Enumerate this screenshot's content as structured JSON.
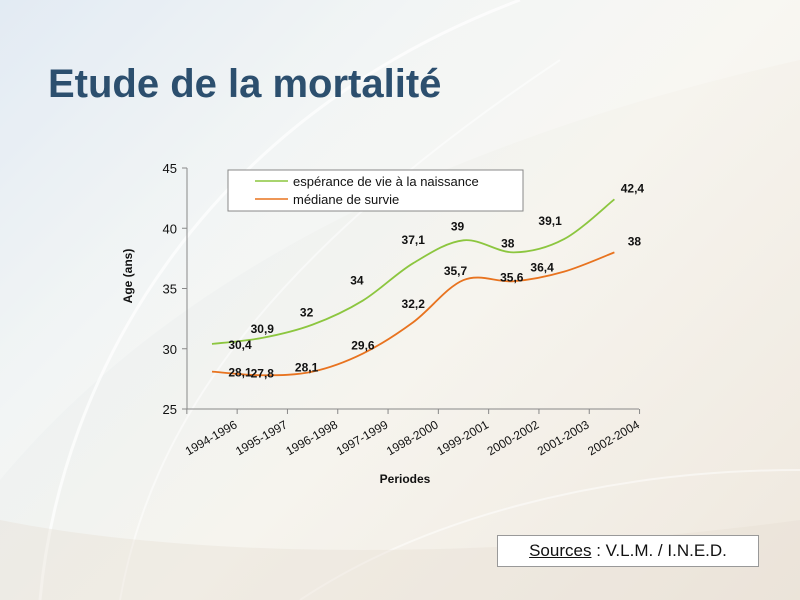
{
  "slide": {
    "title": "Etude de la mortalité",
    "sources_label": "Sources",
    "sources_text": " : V.L.M. / I.N.E.D."
  },
  "colors": {
    "title": "#2c4f6e",
    "series_esperance": "#8cc63f",
    "series_mediane": "#e8731f"
  },
  "chart_data": {
    "type": "line",
    "categories": [
      "1994-1996",
      "1995-1997",
      "1996-1998",
      "1997-1999",
      "1998-2000",
      "1999-2001",
      "2000-2002",
      "2001-2003",
      "2002-2004"
    ],
    "series": [
      {
        "name": "espérance de vie à la naissance",
        "values": [
          30.4,
          30.9,
          32,
          34,
          37.1,
          39,
          38,
          39.1,
          42.4
        ],
        "labels": [
          "30,4",
          "30,9",
          "32",
          "34",
          "37,1",
          "39",
          "38",
          "39,1",
          "42,4"
        ]
      },
      {
        "name": "médiane de survie",
        "values": [
          28.1,
          27.8,
          28.1,
          29.6,
          32.2,
          35.7,
          35.6,
          36.4,
          38
        ],
        "labels": [
          "28,1",
          "27,8",
          "28,1",
          "29,6",
          "32,2",
          "35,7",
          "35,6",
          "36,4",
          "38"
        ]
      }
    ],
    "xlabel": "Periodes",
    "ylabel": "Age (ans)",
    "ylim": [
      25,
      45
    ],
    "yticks": [
      25,
      30,
      35,
      40,
      45
    ],
    "legend_position": "top-center",
    "grid": false
  }
}
